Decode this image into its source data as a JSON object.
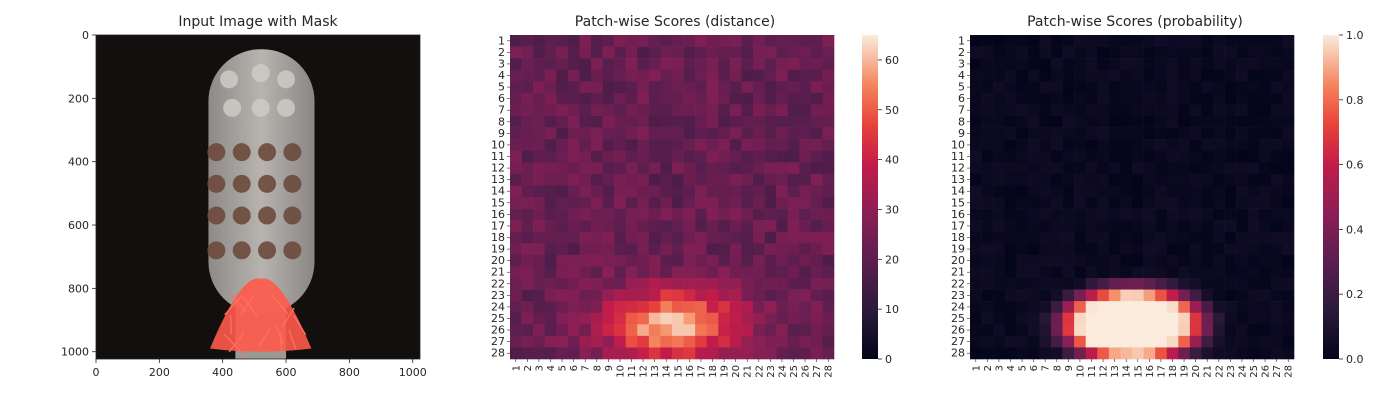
{
  "chart_data": [
    {
      "type": "image",
      "title": "Input Image with Mask",
      "xlim": [
        0,
        1023
      ],
      "ylim": [
        1023,
        0
      ],
      "xticks": [
        0,
        200,
        400,
        600,
        800,
        1000
      ],
      "yticks": [
        0,
        200,
        400,
        600,
        800,
        1000
      ],
      "image": {
        "background": "#120f0e",
        "object": "toothbrush-head",
        "object_color": "#a6a29e",
        "bristle_color": "#6b4a3c",
        "mask_color": "#ff5a4a",
        "mask_region": {
          "x": [
            360,
            680
          ],
          "y": [
            770,
            990
          ]
        }
      }
    },
    {
      "type": "heatmap",
      "title": "Patch-wise Scores (distance)",
      "rows": 28,
      "cols": 28,
      "row_labels": [
        "1",
        "2",
        "3",
        "4",
        "5",
        "6",
        "7",
        "8",
        "9",
        "10",
        "11",
        "12",
        "13",
        "14",
        "15",
        "16",
        "17",
        "18",
        "19",
        "20",
        "21",
        "22",
        "23",
        "24",
        "25",
        "26",
        "27",
        "28"
      ],
      "col_labels": [
        "1",
        "2",
        "3",
        "4",
        "5",
        "6",
        "7",
        "8",
        "9",
        "10",
        "11",
        "12",
        "13",
        "14",
        "15",
        "16",
        "17",
        "18",
        "19",
        "20",
        "21",
        "22",
        "23",
        "24",
        "25",
        "26",
        "27",
        "28"
      ],
      "colorbar": {
        "min": 0,
        "max": 65,
        "ticks": [
          0,
          10,
          20,
          30,
          40,
          50,
          60
        ]
      },
      "baseline": 22,
      "hotspot": {
        "center_col": 14.5,
        "center_row": 25.5,
        "radius_col": 6,
        "radius_row": 3.2,
        "peak": 62
      },
      "cmap": "rocket"
    },
    {
      "type": "heatmap",
      "title": "Patch-wise Scores (probability)",
      "rows": 28,
      "cols": 28,
      "row_labels": [
        "1",
        "2",
        "3",
        "4",
        "5",
        "6",
        "7",
        "8",
        "9",
        "10",
        "11",
        "12",
        "13",
        "14",
        "15",
        "16",
        "17",
        "18",
        "19",
        "20",
        "21",
        "22",
        "23",
        "24",
        "25",
        "26",
        "27",
        "28"
      ],
      "col_labels": [
        "1",
        "2",
        "3",
        "4",
        "5",
        "6",
        "7",
        "8",
        "9",
        "10",
        "11",
        "12",
        "13",
        "14",
        "15",
        "16",
        "17",
        "18",
        "19",
        "20",
        "21",
        "22",
        "23",
        "24",
        "25",
        "26",
        "27",
        "28"
      ],
      "colorbar": {
        "min": 0.0,
        "max": 1.0,
        "ticks": [
          0.0,
          0.2,
          0.4,
          0.6,
          0.8,
          1.0
        ],
        "tick_labels": [
          "0.0",
          "0.2",
          "0.4",
          "0.6",
          "0.8",
          "1.0"
        ]
      },
      "baseline": 0.0,
      "hotspot": {
        "center_col": 14.5,
        "center_row": 25.5,
        "radius_col": 6,
        "radius_row": 3.2,
        "peak": 1.0
      },
      "cmap": "rocket"
    }
  ]
}
